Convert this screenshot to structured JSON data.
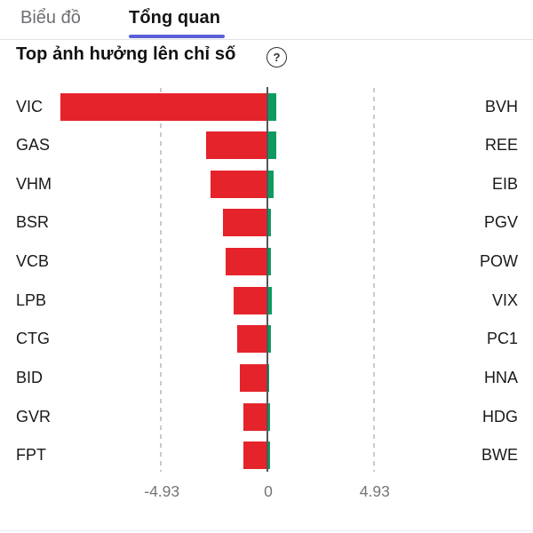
{
  "tabs": [
    {
      "label": "Biểu đồ",
      "active": false
    },
    {
      "label": "Tổng quan",
      "active": true
    }
  ],
  "title": "Top ảnh hưởng lên chỉ số",
  "help_icon_glyph": "?",
  "colors": {
    "negative_bar": "#e5232b",
    "positive_bar": "#0f9b5f",
    "tab_underline": "#5b5fd7",
    "zero_line": "#55555b",
    "gridline": "#c9c9ce"
  },
  "chart_data": {
    "type": "bar",
    "orientation": "horizontal-diverging",
    "title": "Top ảnh hưởng lên chỉ số",
    "legend": "off",
    "grid": "dashed vertical at ±4.93, solid line at 0",
    "x_ticks": [
      -4.93,
      0,
      4.93
    ],
    "x_tick_labels": [
      "-4.93",
      "0",
      "4.93"
    ],
    "rows": [
      {
        "negative": {
          "ticker": "VIC",
          "value": -9.57
        },
        "positive": {
          "ticker": "BVH",
          "value": 0.4
        }
      },
      {
        "negative": {
          "ticker": "GAS",
          "value": -2.85
        },
        "positive": {
          "ticker": "REE",
          "value": 0.41
        }
      },
      {
        "negative": {
          "ticker": "VHM",
          "value": -2.62
        },
        "positive": {
          "ticker": "EIB",
          "value": 0.28
        }
      },
      {
        "negative": {
          "ticker": "BSR",
          "value": -2.07
        },
        "positive": {
          "ticker": "PGV",
          "value": 0.15
        }
      },
      {
        "negative": {
          "ticker": "VCB",
          "value": -1.93
        },
        "positive": {
          "ticker": "POW",
          "value": 0.18
        }
      },
      {
        "negative": {
          "ticker": "LPB",
          "value": -1.55
        },
        "positive": {
          "ticker": "VIX",
          "value": 0.21
        }
      },
      {
        "negative": {
          "ticker": "CTG",
          "value": -1.41
        },
        "positive": {
          "ticker": "PC1",
          "value": 0.18
        }
      },
      {
        "negative": {
          "ticker": "BID",
          "value": -1.29
        },
        "positive": {
          "ticker": "HNA",
          "value": 0.08
        }
      },
      {
        "negative": {
          "ticker": "GVR",
          "value": -1.12
        },
        "positive": {
          "ticker": "HDG",
          "value": 0.11
        }
      },
      {
        "negative": {
          "ticker": "FPT",
          "value": -1.13
        },
        "positive": {
          "ticker": "BWE",
          "value": 0.12
        }
      }
    ]
  }
}
